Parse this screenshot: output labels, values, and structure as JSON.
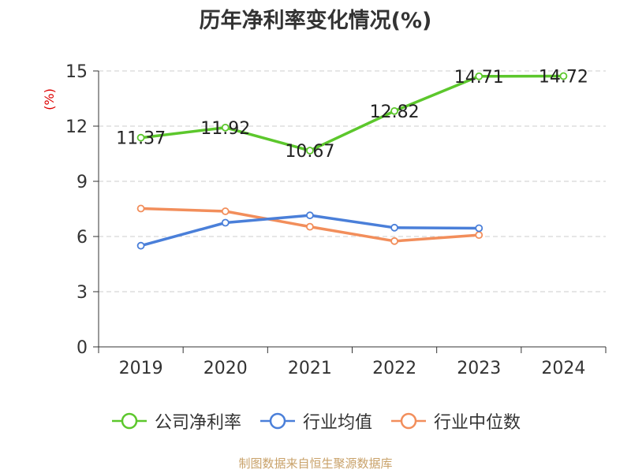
{
  "chart_data": {
    "type": "line",
    "title": "历年净利率变化情况(%)",
    "ylabel": "(%)",
    "xlabel": "",
    "categories": [
      "2019",
      "2020",
      "2021",
      "2022",
      "2023",
      "2024"
    ],
    "ylim": [
      0,
      15
    ],
    "yticks": [
      "0",
      "3",
      "6",
      "9",
      "12",
      "15"
    ],
    "grid": true,
    "legend_position": "bottom",
    "series": [
      {
        "name": "公司净利率",
        "values": [
          11.37,
          11.92,
          10.67,
          12.82,
          14.71,
          14.72
        ],
        "labels": [
          "11.37",
          "11.92",
          "10.67",
          "12.82",
          "14.71",
          "14.72"
        ],
        "color": "#5cc72c"
      },
      {
        "name": "行业均值",
        "values": [
          5.5,
          6.75,
          7.15,
          6.48,
          6.45,
          null
        ],
        "color": "#4a7fd9"
      },
      {
        "name": "行业中位数",
        "values": [
          7.52,
          7.37,
          6.53,
          5.75,
          6.08,
          null
        ],
        "color": "#f28e5b"
      }
    ],
    "colors": {
      "ylabel": "#dd0000",
      "grid": "#cccccc",
      "axis": "#333333"
    }
  },
  "source_note": "制图数据来自恒生聚源数据库",
  "source_note_color": "#c9a26a"
}
